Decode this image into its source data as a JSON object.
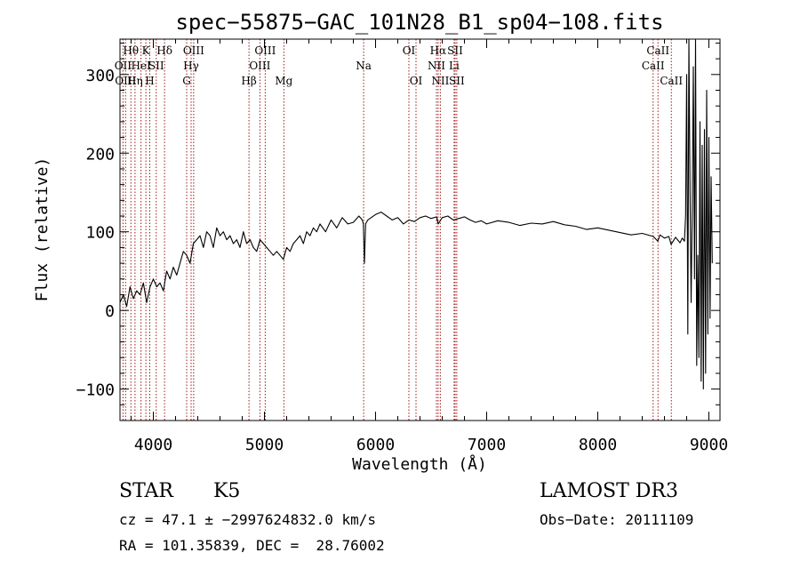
{
  "chart_data": {
    "type": "line",
    "title": "spec−55875−GAC_101N28_B1_sp04−108.fits",
    "xlabel": "Wavelength (Å)",
    "ylabel": "Flux (relative)",
    "xlim": [
      3700,
      9100
    ],
    "ylim": [
      -140,
      345
    ],
    "xticks": [
      4000,
      5000,
      6000,
      7000,
      8000,
      9000
    ],
    "xtick_labels": [
      "4000",
      "5000",
      "6000",
      "7000",
      "8000",
      "9000"
    ],
    "yticks": [
      -100,
      0,
      100,
      200,
      300
    ],
    "ytick_labels": [
      "−100",
      "0",
      "100",
      "200",
      "300"
    ],
    "series": [
      {
        "name": "flux",
        "x": [
          3700,
          3730,
          3760,
          3790,
          3820,
          3850,
          3880,
          3910,
          3940,
          3970,
          4000,
          4030,
          4060,
          4090,
          4120,
          4150,
          4180,
          4210,
          4240,
          4270,
          4300,
          4330,
          4360,
          4390,
          4420,
          4450,
          4480,
          4510,
          4540,
          4570,
          4600,
          4630,
          4660,
          4690,
          4720,
          4750,
          4780,
          4810,
          4840,
          4870,
          4900,
          4930,
          4960,
          4990,
          5020,
          5050,
          5080,
          5110,
          5140,
          5170,
          5200,
          5230,
          5260,
          5290,
          5320,
          5350,
          5380,
          5410,
          5440,
          5470,
          5500,
          5550,
          5600,
          5650,
          5700,
          5750,
          5800,
          5850,
          5880,
          5890,
          5900,
          5910,
          5930,
          5960,
          6000,
          6050,
          6100,
          6150,
          6200,
          6250,
          6300,
          6350,
          6400,
          6450,
          6500,
          6550,
          6563,
          6600,
          6650,
          6700,
          6750,
          6800,
          6850,
          6900,
          6950,
          7000,
          7100,
          7200,
          7300,
          7400,
          7500,
          7600,
          7700,
          7800,
          7900,
          8000,
          8100,
          8200,
          8300,
          8400,
          8500,
          8540,
          8560,
          8600,
          8640,
          8660,
          8700,
          8740,
          8760,
          8780,
          8790,
          8800,
          8810,
          8820,
          8830,
          8840,
          8850,
          8860,
          8870,
          8880,
          8890,
          8900,
          8910,
          8920,
          8930,
          8940,
          8950,
          8960,
          8970,
          8980,
          8990,
          9000,
          9010,
          9020,
          9030
        ],
        "y": [
          10,
          20,
          5,
          30,
          15,
          25,
          20,
          35,
          10,
          30,
          40,
          30,
          35,
          25,
          50,
          40,
          55,
          45,
          60,
          75,
          70,
          60,
          85,
          90,
          95,
          80,
          100,
          95,
          80,
          105,
          95,
          100,
          90,
          95,
          85,
          90,
          80,
          100,
          85,
          90,
          80,
          75,
          90,
          85,
          80,
          75,
          70,
          75,
          70,
          65,
          80,
          75,
          85,
          90,
          95,
          85,
          100,
          95,
          105,
          100,
          110,
          100,
          115,
          105,
          118,
          110,
          112,
          120,
          115,
          110,
          60,
          110,
          115,
          118,
          122,
          125,
          120,
          115,
          118,
          110,
          115,
          113,
          118,
          120,
          117,
          119,
          110,
          118,
          120,
          115,
          117,
          119,
          115,
          112,
          114,
          110,
          114,
          112,
          108,
          111,
          110,
          113,
          109,
          107,
          103,
          105,
          102,
          99,
          96,
          98,
          94,
          88,
          96,
          92,
          94,
          84,
          93,
          86,
          92,
          88,
          120,
          300,
          -30,
          350,
          150,
          10,
          130,
          310,
          40,
          350,
          -70,
          70,
          -60,
          240,
          -90,
          210,
          -100,
          230,
          -80,
          280,
          -30,
          220,
          -10,
          170,
          60
        ]
      }
    ],
    "lines": [
      {
        "x": 3727,
        "label": "OII",
        "row": 2
      },
      {
        "x": 3750,
        "label": "OIII",
        "row": 3
      },
      {
        "x": 3798,
        "label": "Hθ",
        "row": 1
      },
      {
        "x": 3835,
        "label": "Hη",
        "row": 3
      },
      {
        "x": 3889,
        "label": "HeI",
        "row": 2
      },
      {
        "x": 3933,
        "label": "K",
        "row": 1
      },
      {
        "x": 3968,
        "label": "H",
        "row": 3
      },
      {
        "x": 4026,
        "label": "SII",
        "row": 2
      },
      {
        "x": 4101,
        "label": "Hδ",
        "row": 1
      },
      {
        "x": 4300,
        "label": "G",
        "row": 3
      },
      {
        "x": 4340,
        "label": "Hγ",
        "row": 2
      },
      {
        "x": 4363,
        "label": "OIII",
        "row": 1
      },
      {
        "x": 4861,
        "label": "Hβ",
        "row": 3
      },
      {
        "x": 4959,
        "label": "OIII",
        "row": 2
      },
      {
        "x": 5007,
        "label": "OIII",
        "row": 1
      },
      {
        "x": 5175,
        "label": "Mg",
        "row": 3
      },
      {
        "x": 5893,
        "label": "Na",
        "row": 2
      },
      {
        "x": 6300,
        "label": "OI",
        "row": 1
      },
      {
        "x": 6364,
        "label": "OI",
        "row": 3
      },
      {
        "x": 6548,
        "label": "NII",
        "row": 2
      },
      {
        "x": 6563,
        "label": "Hα",
        "row": 1
      },
      {
        "x": 6583,
        "label": "NII",
        "row": 3
      },
      {
        "x": 6707,
        "label": "Li",
        "row": 2
      },
      {
        "x": 6716,
        "label": "SII",
        "row": 1
      },
      {
        "x": 6731,
        "label": "SII",
        "row": 3
      },
      {
        "x": 8498,
        "label": "CaII",
        "row": 2
      },
      {
        "x": 8542,
        "label": "CaII",
        "row": 1
      },
      {
        "x": 8662,
        "label": "CaII",
        "row": 3
      }
    ]
  },
  "info": {
    "class": "STAR",
    "subclass": "K5",
    "survey": "LAMOST DR3",
    "cz": "cz = 47.1 ± −2997624832.0 km/s",
    "obsdate": "Obs−Date: 20111109",
    "radec": "RA = 101.35839, DEC =  28.76002"
  },
  "colors": {
    "spectrum": "#000000",
    "line_markers": "#a01818",
    "axes": "#000000"
  }
}
